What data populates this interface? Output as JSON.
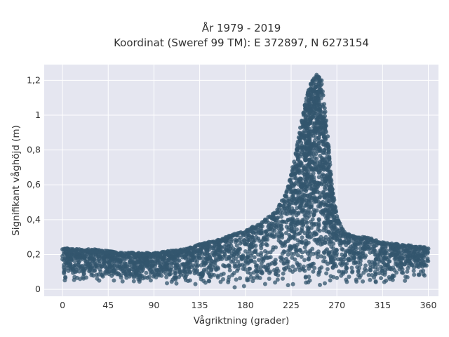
{
  "chart_data": {
    "type": "scatter",
    "title": "År 1979 - 2019",
    "subtitle": "Koordinat (Sweref 99 TM): E 372897, N 6273154",
    "xlabel": "Vågriktning (grader)",
    "ylabel": "Signifikant våghöjd (m)",
    "xlim": [
      -18,
      370
    ],
    "ylim": [
      -0.04,
      1.29
    ],
    "xticks": [
      0,
      45,
      90,
      135,
      180,
      225,
      270,
      315,
      360
    ],
    "xtick_labels": [
      "0",
      "45",
      "90",
      "135",
      "180",
      "225",
      "270",
      "315",
      "360"
    ],
    "yticks": [
      0,
      0.2,
      0.4,
      0.6,
      0.8,
      1.0,
      1.2
    ],
    "ytick_labels": [
      "0",
      "0,2",
      "0,4",
      "0,6",
      "0,8",
      "1",
      "1,2"
    ],
    "grid": true,
    "legend": "none",
    "colors": {
      "marker": "#33566e",
      "plot_background": "#e5e6f0",
      "grid": "#ffffff"
    },
    "envelope": {
      "direction": [
        0,
        15,
        30,
        45,
        60,
        75,
        90,
        105,
        120,
        135,
        150,
        165,
        180,
        195,
        210,
        220,
        225,
        230,
        235,
        240,
        245,
        250,
        255,
        260,
        265,
        270,
        275,
        280,
        290,
        300,
        315,
        330,
        345,
        360
      ],
      "height_min": [
        0.05,
        0.04,
        0.04,
        0.04,
        0.03,
        0.03,
        0.03,
        0.02,
        0.02,
        0.02,
        0.02,
        0.01,
        0.01,
        0.01,
        0.01,
        0.01,
        0.01,
        0.01,
        0.01,
        0.01,
        0.01,
        0.01,
        0.01,
        0.01,
        0.01,
        0.01,
        0.02,
        0.02,
        0.02,
        0.02,
        0.03,
        0.03,
        0.04,
        0.05
      ],
      "height_max": [
        0.24,
        0.23,
        0.23,
        0.22,
        0.21,
        0.21,
        0.21,
        0.22,
        0.23,
        0.26,
        0.28,
        0.31,
        0.34,
        0.38,
        0.45,
        0.55,
        0.66,
        0.8,
        0.96,
        1.1,
        1.2,
        1.24,
        1.2,
        0.95,
        0.6,
        0.42,
        0.35,
        0.32,
        0.3,
        0.3,
        0.27,
        0.26,
        0.25,
        0.24
      ]
    }
  }
}
